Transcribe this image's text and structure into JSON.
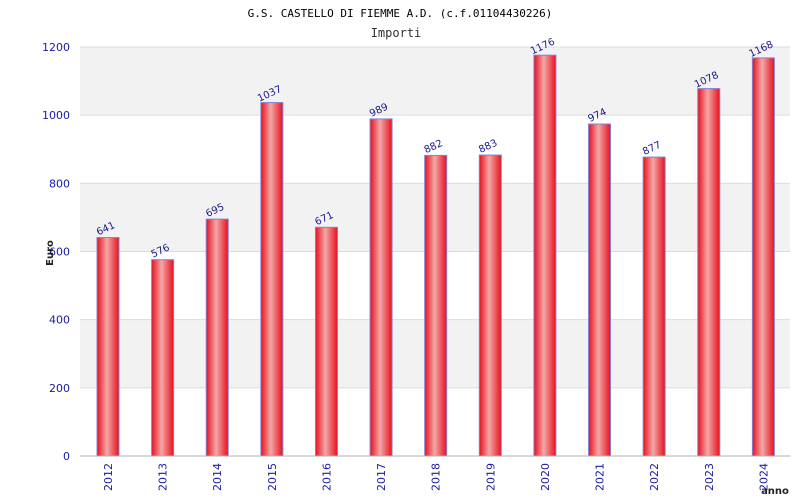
{
  "chart_data": {
    "type": "bar",
    "title": "G.S. CASTELLO DI FIEMME A.D. (c.f.01104430226)",
    "subtitle": "Importi",
    "xlabel": "anno",
    "ylabel": "Euro",
    "ylim": [
      0,
      1200
    ],
    "yticks": [
      0,
      200,
      400,
      600,
      800,
      1000,
      1200
    ],
    "grid": true,
    "categories": [
      "2012",
      "2013",
      "2014",
      "2015",
      "2016",
      "2017",
      "2018",
      "2019",
      "2020",
      "2021",
      "2022",
      "2023",
      "2024"
    ],
    "values": [
      641,
      576,
      695,
      1037,
      671,
      989,
      882,
      883,
      1176,
      974,
      877,
      1078,
      1168
    ],
    "data_labels": [
      "641",
      "576",
      "695",
      "1037",
      "671",
      "989",
      "882",
      "883",
      "1176",
      "974",
      "877",
      "1078",
      "1168"
    ],
    "colors": {
      "bar_center": "#f2a8a8",
      "bar_edge": "#e8101c",
      "bar_outline": "#8a7fd0",
      "band": "#f2f2f2",
      "text": "#1a1aa6"
    }
  }
}
